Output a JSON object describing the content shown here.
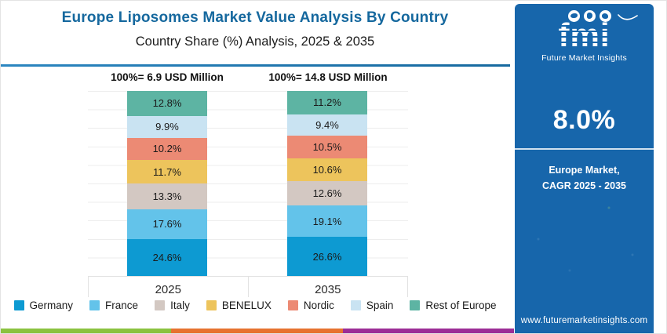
{
  "header": {
    "title": "Europe Liposomes Market Value Analysis By Country",
    "subtitle": "Country Share (%) Analysis, 2025 & 2035"
  },
  "chart_data": {
    "type": "bar",
    "variant": "100-percent-stacked-column",
    "categories": [
      "2025",
      "2035"
    ],
    "column_totals": [
      "100%= 6.9 USD Million",
      "100%= 14.8 USD Million"
    ],
    "value_suffix": "%",
    "ylim": [
      0,
      100
    ],
    "grid": true,
    "legend_position": "bottom",
    "series": [
      {
        "name": "Germany",
        "color": "#0d9ad2",
        "values": [
          24.6,
          26.6
        ]
      },
      {
        "name": "France",
        "color": "#63c3ea",
        "values": [
          17.6,
          19.1
        ]
      },
      {
        "name": "Italy",
        "color": "#d3c8c2",
        "values": [
          13.3,
          12.6
        ]
      },
      {
        "name": "BENELUX",
        "color": "#edc45c",
        "values": [
          11.7,
          10.6
        ]
      },
      {
        "name": "Nordic",
        "color": "#ec8a74",
        "values": [
          10.2,
          10.5
        ]
      },
      {
        "name": "Spain",
        "color": "#c9e3f2",
        "values": [
          9.9,
          9.4
        ]
      },
      {
        "name": "Rest of Europe",
        "color": "#5db4a3",
        "values": [
          12.8,
          11.2
        ]
      }
    ],
    "stack_order_bottom_to_top": [
      "Germany",
      "France",
      "Italy",
      "BENELUX",
      "Nordic",
      "Spain",
      "Rest of Europe"
    ]
  },
  "sidebar": {
    "logo_text": "fmi",
    "logo_tagline": "Future Market Insights",
    "cagr_value": "8.0%",
    "cagr_caption_line1": "Europe Market,",
    "cagr_caption_line2": "CAGR 2025 - 2035",
    "website": "www.futuremarketinsights.com",
    "background_color": "#1766ab"
  },
  "footer_stripe_colors": [
    "#8bc240",
    "#e77230",
    "#9c2d96"
  ],
  "accent_colors": {
    "title_blue": "#15689e",
    "header_rule_blue": "#1f7ab5",
    "gridline": "#ededed",
    "axis_border": "#e2e2e2"
  }
}
